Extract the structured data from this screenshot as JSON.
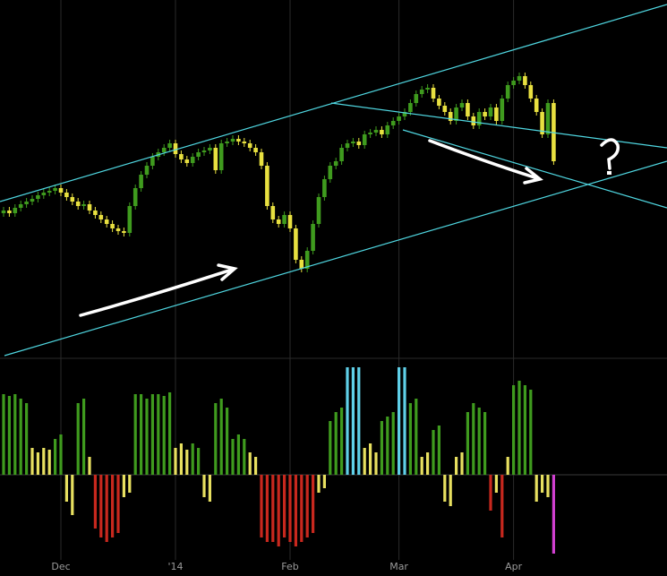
{
  "chart_data": {
    "type": "candlestick",
    "up_color": "#3f9b1e",
    "down_color": "#e8e040",
    "ylim": [
      0,
      400
    ],
    "x_labels": [
      {
        "index": 10,
        "label": "Dec"
      },
      {
        "index": 30,
        "label": "'14"
      },
      {
        "index": 50,
        "label": "Feb"
      },
      {
        "index": 69,
        "label": "Mar"
      },
      {
        "index": 89,
        "label": "Apr"
      }
    ],
    "open": [
      162,
      165,
      162,
      168,
      172,
      175,
      178,
      182,
      185,
      187,
      190,
      185,
      180,
      175,
      170,
      172,
      165,
      160,
      155,
      150,
      145,
      142,
      140,
      170,
      190,
      205,
      215,
      225,
      230,
      235,
      240,
      228,
      222,
      218,
      225,
      230,
      232,
      235,
      210,
      240,
      242,
      245,
      242,
      240,
      235,
      230,
      215,
      170,
      155,
      150,
      160,
      145,
      110,
      100,
      120,
      150,
      180,
      200,
      215,
      220,
      235,
      240,
      242,
      238,
      250,
      252,
      255,
      250,
      260,
      265,
      270,
      275,
      285,
      295,
      300,
      302,
      290,
      282,
      275,
      265,
      280,
      285,
      270,
      260,
      275,
      270,
      280,
      265,
      290,
      305,
      310,
      315,
      305,
      290,
      275,
      250,
      285
    ],
    "high": [
      169,
      169,
      172,
      176,
      179,
      182,
      186,
      189,
      191,
      194,
      194,
      189,
      184,
      179,
      176,
      176,
      169,
      164,
      159,
      154,
      149,
      146,
      174,
      194,
      209,
      219,
      229,
      234,
      239,
      244,
      244,
      232,
      226,
      229,
      234,
      236,
      239,
      239,
      244,
      246,
      249,
      249,
      246,
      244,
      239,
      234,
      219,
      174,
      159,
      164,
      164,
      149,
      114,
      124,
      154,
      184,
      204,
      219,
      224,
      239,
      244,
      246,
      246,
      254,
      256,
      259,
      259,
      264,
      269,
      274,
      279,
      289,
      299,
      304,
      306,
      306,
      294,
      286,
      279,
      284,
      289,
      289,
      274,
      279,
      279,
      284,
      284,
      294,
      309,
      314,
      319,
      319,
      309,
      294,
      279,
      289,
      289
    ],
    "low": [
      158,
      158,
      158,
      164,
      168,
      171,
      174,
      178,
      181,
      183,
      181,
      176,
      171,
      166,
      166,
      161,
      156,
      151,
      146,
      141,
      138,
      136,
      136,
      166,
      186,
      201,
      211,
      221,
      226,
      231,
      224,
      218,
      214,
      214,
      221,
      226,
      228,
      206,
      206,
      236,
      238,
      238,
      236,
      231,
      226,
      211,
      166,
      151,
      146,
      146,
      141,
      106,
      96,
      96,
      116,
      146,
      176,
      196,
      211,
      216,
      231,
      236,
      234,
      234,
      246,
      248,
      246,
      246,
      256,
      261,
      266,
      271,
      281,
      291,
      296,
      286,
      278,
      271,
      261,
      261,
      276,
      266,
      256,
      256,
      266,
      266,
      261,
      261,
      286,
      301,
      306,
      301,
      286,
      271,
      246,
      246,
      216
    ],
    "close": [
      165,
      162,
      168,
      172,
      175,
      178,
      182,
      185,
      187,
      190,
      185,
      180,
      175,
      170,
      172,
      165,
      160,
      155,
      150,
      145,
      142,
      140,
      170,
      190,
      205,
      215,
      225,
      230,
      235,
      240,
      228,
      222,
      218,
      225,
      230,
      232,
      235,
      210,
      240,
      242,
      245,
      242,
      240,
      235,
      230,
      215,
      170,
      155,
      150,
      160,
      145,
      110,
      100,
      120,
      150,
      180,
      200,
      215,
      220,
      235,
      240,
      242,
      238,
      250,
      252,
      255,
      250,
      260,
      265,
      270,
      275,
      285,
      295,
      300,
      302,
      290,
      282,
      275,
      265,
      280,
      285,
      270,
      260,
      275,
      270,
      280,
      265,
      290,
      305,
      310,
      315,
      305,
      290,
      275,
      250,
      285,
      220
    ],
    "indicator": {
      "type": "bar",
      "ylim": [
        -90,
        130
      ],
      "values": [
        90,
        88,
        90,
        85,
        80,
        30,
        25,
        30,
        28,
        40,
        45,
        -30,
        -45,
        80,
        85,
        20,
        -60,
        -70,
        -75,
        -70,
        -65,
        -25,
        -20,
        90,
        90,
        85,
        90,
        90,
        88,
        92,
        30,
        35,
        28,
        35,
        30,
        -25,
        -30,
        80,
        85,
        75,
        40,
        45,
        40,
        25,
        20,
        -70,
        -75,
        -75,
        -80,
        -70,
        -75,
        -80,
        -75,
        -70,
        -65,
        -20,
        -15,
        60,
        70,
        75,
        120,
        120,
        120,
        30,
        35,
        25,
        60,
        65,
        70,
        120,
        120,
        80,
        85,
        20,
        25,
        50,
        55,
        -30,
        -35,
        20,
        25,
        70,
        80,
        75,
        70,
        -40,
        -20,
        -70,
        20,
        100,
        105,
        100,
        95,
        -30,
        -20,
        -25,
        -88
      ],
      "colors": [
        "#3f9b1e",
        "#3f9b1e",
        "#3f9b1e",
        "#3f9b1e",
        "#3f9b1e",
        "#e8e060",
        "#e8e060",
        "#e8e060",
        "#e8e060",
        "#3f9b1e",
        "#3f9b1e",
        "#e8e060",
        "#e8e060",
        "#3f9b1e",
        "#3f9b1e",
        "#e8e060",
        "#c8281e",
        "#c8281e",
        "#c8281e",
        "#c8281e",
        "#c8281e",
        "#e8e060",
        "#e8e060",
        "#3f9b1e",
        "#3f9b1e",
        "#3f9b1e",
        "#3f9b1e",
        "#3f9b1e",
        "#3f9b1e",
        "#3f9b1e",
        "#e8e060",
        "#e8e060",
        "#e8e060",
        "#3f9b1e",
        "#3f9b1e",
        "#e8e060",
        "#e8e060",
        "#3f9b1e",
        "#3f9b1e",
        "#3f9b1e",
        "#3f9b1e",
        "#3f9b1e",
        "#3f9b1e",
        "#e8e060",
        "#e8e060",
        "#c8281e",
        "#c8281e",
        "#c8281e",
        "#c8281e",
        "#c8281e",
        "#c8281e",
        "#c8281e",
        "#c8281e",
        "#c8281e",
        "#c8281e",
        "#e8e060",
        "#e8e060",
        "#3f9b1e",
        "#3f9b1e",
        "#3f9b1e",
        "#5fd0e8",
        "#5fd0e8",
        "#5fd0e8",
        "#e8e060",
        "#e8e060",
        "#e8e060",
        "#3f9b1e",
        "#3f9b1e",
        "#3f9b1e",
        "#5fd0e8",
        "#5fd0e8",
        "#3f9b1e",
        "#3f9b1e",
        "#e8e060",
        "#e8e060",
        "#3f9b1e",
        "#3f9b1e",
        "#e8e060",
        "#e8e060",
        "#e8e060",
        "#e8e060",
        "#3f9b1e",
        "#3f9b1e",
        "#3f9b1e",
        "#3f9b1e",
        "#c8281e",
        "#e8e060",
        "#c8281e",
        "#e8e060",
        "#3f9b1e",
        "#3f9b1e",
        "#3f9b1e",
        "#3f9b1e",
        "#e8e060",
        "#e8e060",
        "#e8e060",
        "#d040d0"
      ]
    }
  }
}
